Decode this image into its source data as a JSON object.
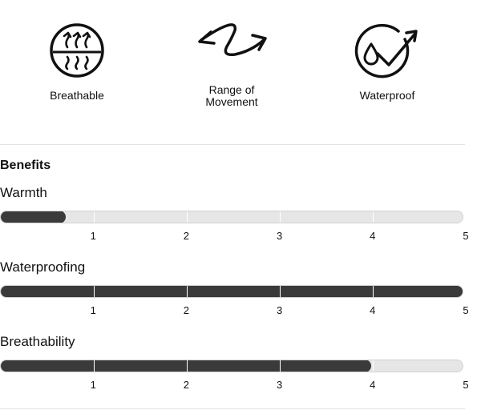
{
  "features": [
    {
      "icon": "breathable-icon",
      "label": "Breathable"
    },
    {
      "icon": "range-of-movement-icon",
      "label": "Range of\nMovement"
    },
    {
      "icon": "waterproof-icon",
      "label": "Waterproof"
    }
  ],
  "benefits": {
    "title": "Benefits",
    "scale_labels": [
      "1",
      "2",
      "3",
      "4",
      "5"
    ],
    "scale_max": 5,
    "metrics": [
      {
        "name": "Warmth",
        "value": 0.7
      },
      {
        "name": "Waterproofing",
        "value": 5
      },
      {
        "name": "Breathability",
        "value": 4
      }
    ]
  }
}
